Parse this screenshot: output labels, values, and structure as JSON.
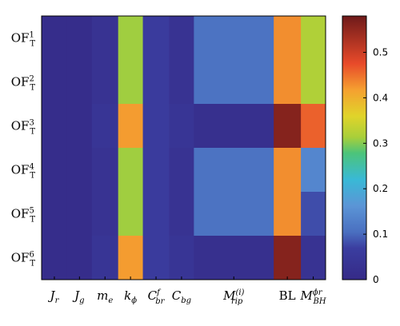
{
  "chart_data": {
    "type": "heatmap",
    "rows": [
      {
        "base": "OF",
        "sub": "T",
        "sup": "1"
      },
      {
        "base": "OF",
        "sub": "T",
        "sup": "2"
      },
      {
        "base": "OF",
        "sub": "T",
        "sup": "3"
      },
      {
        "base": "OF",
        "sub": "T",
        "sup": "4"
      },
      {
        "base": "OF",
        "sub": "T",
        "sup": "5"
      },
      {
        "base": "OF",
        "sub": "T",
        "sup": "6"
      }
    ],
    "columns": [
      {
        "base": "J",
        "sub": "r",
        "sup": "",
        "italic": true
      },
      {
        "base": "J",
        "sub": "g",
        "sup": "",
        "italic": true
      },
      {
        "base": "m",
        "sub": "e",
        "sup": "",
        "italic": true
      },
      {
        "base": "k",
        "sub": "ϕ",
        "sup": "",
        "italic": true
      },
      {
        "base": "C",
        "sub": "br",
        "sup": "f",
        "italic": true
      },
      {
        "base": "C",
        "sub": "bg",
        "sup": "",
        "italic": true
      },
      {
        "base": "M",
        "sub": "rip",
        "sup": "(i)",
        "italic": true
      },
      {
        "base": "BL",
        "sub": "",
        "sup": "",
        "italic": false
      },
      {
        "base": "M",
        "sub": "BH",
        "sup": "ϕr",
        "italic": true
      }
    ],
    "values": [
      [
        0.01,
        0.01,
        0.03,
        0.31,
        0.06,
        0.03,
        0.11,
        0.43,
        0.32
      ],
      [
        0.01,
        0.01,
        0.03,
        0.31,
        0.06,
        0.03,
        0.11,
        0.43,
        0.32
      ],
      [
        0.01,
        0.01,
        0.04,
        0.42,
        0.06,
        0.04,
        0.02,
        0.56,
        0.46
      ],
      [
        0.01,
        0.01,
        0.03,
        0.31,
        0.06,
        0.03,
        0.11,
        0.43,
        0.14
      ],
      [
        0.01,
        0.01,
        0.03,
        0.31,
        0.06,
        0.03,
        0.11,
        0.43,
        0.08
      ],
      [
        0.01,
        0.01,
        0.04,
        0.42,
        0.06,
        0.04,
        0.02,
        0.56,
        0.03
      ]
    ],
    "colorbar": {
      "range": [
        0,
        0.58
      ],
      "ticks": [
        0,
        0.1,
        0.2,
        0.3,
        0.4,
        0.5
      ],
      "tick_labels": [
        "0",
        "0.1",
        "0.2",
        "0.3",
        "0.4",
        "0.5"
      ],
      "colormap": "jet"
    },
    "colormap_stops": [
      [
        0.0,
        "#352a87"
      ],
      [
        0.12,
        "#3b3ea0"
      ],
      [
        0.18,
        "#4a6fc0"
      ],
      [
        0.28,
        "#5b95d6"
      ],
      [
        0.38,
        "#39b9d6"
      ],
      [
        0.48,
        "#4cc47a"
      ],
      [
        0.54,
        "#a8cf3a"
      ],
      [
        0.62,
        "#e0d42a"
      ],
      [
        0.72,
        "#f5a030"
      ],
      [
        0.82,
        "#e84a2a"
      ],
      [
        1.0,
        "#6e1a1a"
      ]
    ]
  }
}
